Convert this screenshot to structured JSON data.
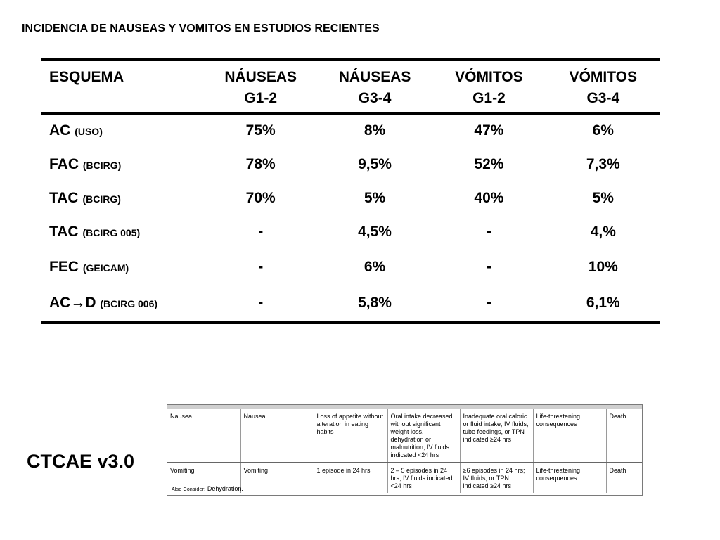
{
  "title": "INCIDENCIA DE NAUSEAS Y VOMITOS EN ESTUDIOS RECIENTES",
  "table": {
    "headers": [
      {
        "line1": "ESQUEMA",
        "line2": ""
      },
      {
        "line1": "NÁUSEAS",
        "line2": "G1-2"
      },
      {
        "line1": "NÁUSEAS",
        "line2": "G3-4"
      },
      {
        "line1": "VÓMITOS",
        "line2": "G1-2"
      },
      {
        "line1": "VÓMITOS",
        "line2": "G3-4"
      }
    ],
    "rows": [
      {
        "scheme": "AC",
        "note": "(USO)",
        "values": [
          "75%",
          "8%",
          "47%",
          "6%"
        ]
      },
      {
        "scheme": "FAC",
        "note": "(BCIRG)",
        "values": [
          "78%",
          "9,5%",
          "52%",
          "7,3%"
        ]
      },
      {
        "scheme": "TAC",
        "note": "(BCIRG)",
        "values": [
          "70%",
          "5%",
          "40%",
          "5%"
        ]
      },
      {
        "scheme": "TAC",
        "note": "(BCIRG 005)",
        "values": [
          "-",
          "4,5%",
          "-",
          "4,%"
        ]
      },
      {
        "scheme": "FEC",
        "note": "(GEICAM)",
        "values": [
          "-",
          "6%",
          "-",
          "10%"
        ]
      },
      {
        "scheme": "AC→D",
        "note": "(BCIRG 006)",
        "values": [
          "-",
          "5,8%",
          "-",
          "6,1%"
        ]
      }
    ]
  },
  "ctcae": {
    "label": "CTCAE v3.0",
    "rows": [
      {
        "cells": [
          "Nausea",
          "Nausea",
          "Loss of appetite without alteration in eating habits",
          "Oral intake decreased without significant weight loss, dehydration or malnutrition; IV fluids indicated <24 hrs",
          "Inadequate oral caloric or fluid intake; IV fluids, tube feedings, or TPN indicated ≥24 hrs",
          "Life-threatening consequences",
          "Death"
        ]
      },
      {
        "cells": [
          "Vomiting",
          "Vomiting",
          "1 episode in 24 hrs",
          "2 – 5 episodes in 24 hrs; IV fluids indicated <24 hrs",
          "≥6 episodes in 24 hrs; IV fluids, or TPN indicated ≥24 hrs",
          "Life-threatening consequences",
          "Death"
        ]
      }
    ],
    "also_consider_label": "Also Consider:",
    "also_consider_value": "Dehydration."
  }
}
